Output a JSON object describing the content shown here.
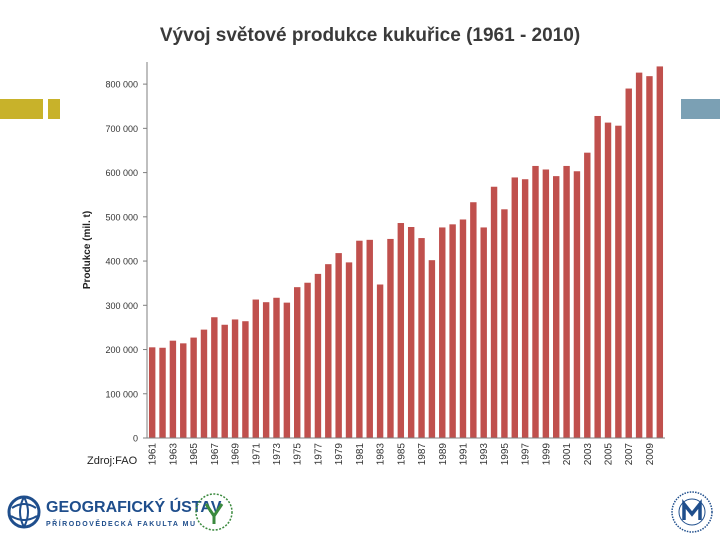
{
  "colors": {
    "bar": "#c0504d",
    "accent_left": "#c8b22a",
    "accent_right": "#7ba0b4",
    "axis": "#7f7f7f",
    "logo_blue": "#1f4e8c",
    "logo_green": "#3b8a3e"
  },
  "source": "Zdroj:FAO",
  "logos": {
    "left_title": "GEOGRAFICKÝ ÚSTAV",
    "left_subtitle": "PŘÍRODOVĚDECKÁ FAKULTA MU"
  },
  "chart_data": {
    "type": "bar",
    "title": "Vývoj světové produkce kukuřice (1961 - 2010)",
    "ylabel": "Produkce (mil. t)",
    "xlabel": "",
    "ylim": [
      0,
      850000
    ],
    "yticks": [
      0,
      100000,
      200000,
      300000,
      400000,
      500000,
      600000,
      700000,
      800000
    ],
    "ytick_labels": [
      "0",
      "100 000",
      "200 000",
      "300 000",
      "400 000",
      "500 000",
      "600 000",
      "700 000",
      "800 000"
    ],
    "categories": [
      "1961",
      "1962",
      "1963",
      "1964",
      "1965",
      "1966",
      "1967",
      "1968",
      "1969",
      "1970",
      "1971",
      "1972",
      "1973",
      "1974",
      "1975",
      "1976",
      "1977",
      "1978",
      "1979",
      "1980",
      "1981",
      "1982",
      "1983",
      "1984",
      "1985",
      "1986",
      "1987",
      "1988",
      "1989",
      "1990",
      "1991",
      "1992",
      "1993",
      "1994",
      "1995",
      "1996",
      "1997",
      "1998",
      "1999",
      "2000",
      "2001",
      "2002",
      "2003",
      "2004",
      "2005",
      "2006",
      "2007",
      "2008",
      "2009",
      "2010"
    ],
    "xtick_labels": [
      "1961",
      "1963",
      "1965",
      "1967",
      "1969",
      "1971",
      "1973",
      "1975",
      "1977",
      "1979",
      "1981",
      "1983",
      "1985",
      "1987",
      "1989",
      "1991",
      "1993",
      "1995",
      "1997",
      "1999",
      "2001",
      "2003",
      "2005",
      "2007",
      "2009"
    ],
    "values": [
      205000,
      204000,
      220000,
      214000,
      227000,
      245000,
      273000,
      256000,
      268000,
      264000,
      313000,
      307000,
      317000,
      306000,
      341000,
      351000,
      371000,
      393000,
      418000,
      397000,
      446000,
      448000,
      347000,
      450000,
      486000,
      477000,
      452000,
      402000,
      476000,
      483000,
      494000,
      533000,
      476000,
      568000,
      517000,
      589000,
      585000,
      615000,
      607000,
      592000,
      615000,
      603000,
      645000,
      728000,
      713000,
      706000,
      790000,
      826000,
      818000,
      840000
    ]
  }
}
